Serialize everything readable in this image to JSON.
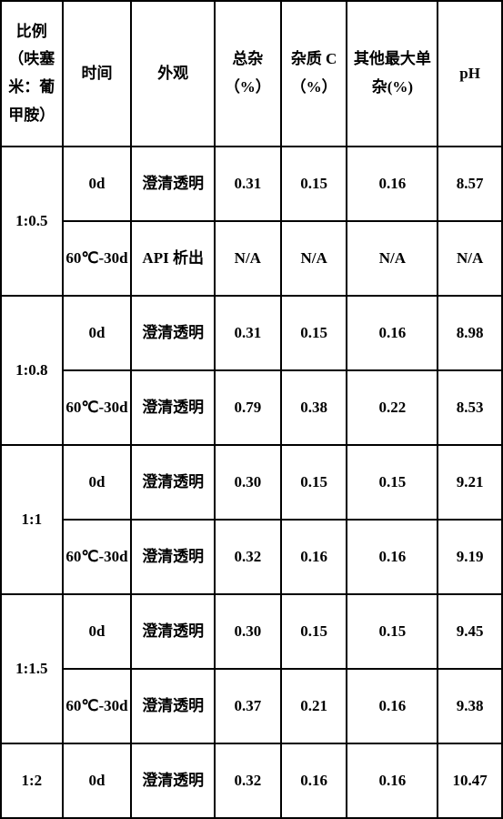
{
  "headers": {
    "ratio": "比例（呋塞米：葡甲胺）",
    "time": "时间",
    "appearance": "外观",
    "total_impurity": "总杂（%）",
    "impurity_c": "杂质 C（%）",
    "other_max": "其他最大单杂(%)",
    "ph": "pH"
  },
  "groups": [
    {
      "ratio": "1:0.5",
      "rows": [
        {
          "time": "0d",
          "appearance": "澄清透明",
          "total": "0.31",
          "impc": "0.15",
          "other": "0.16",
          "ph": "8.57"
        },
        {
          "time": "60℃-30d",
          "appearance": "API 析出",
          "total": "N/A",
          "impc": "N/A",
          "other": "N/A",
          "ph": "N/A"
        }
      ]
    },
    {
      "ratio": "1:0.8",
      "rows": [
        {
          "time": "0d",
          "appearance": "澄清透明",
          "total": "0.31",
          "impc": "0.15",
          "other": "0.16",
          "ph": "8.98"
        },
        {
          "time": "60℃-30d",
          "appearance": "澄清透明",
          "total": "0.79",
          "impc": "0.38",
          "other": "0.22",
          "ph": "8.53"
        }
      ]
    },
    {
      "ratio": "1:1",
      "rows": [
        {
          "time": "0d",
          "appearance": "澄清透明",
          "total": "0.30",
          "impc": "0.15",
          "other": "0.15",
          "ph": "9.21"
        },
        {
          "time": "60℃-30d",
          "appearance": "澄清透明",
          "total": "0.32",
          "impc": "0.16",
          "other": "0.16",
          "ph": "9.19"
        }
      ]
    },
    {
      "ratio": "1:1.5",
      "rows": [
        {
          "time": "0d",
          "appearance": "澄清透明",
          "total": "0.30",
          "impc": "0.15",
          "other": "0.15",
          "ph": "9.45"
        },
        {
          "time": "60℃-30d",
          "appearance": "澄清透明",
          "total": "0.37",
          "impc": "0.21",
          "other": "0.16",
          "ph": "9.38"
        }
      ]
    },
    {
      "ratio": "1:2",
      "rows": [
        {
          "time": "0d",
          "appearance": "澄清透明",
          "total": "0.32",
          "impc": "0.16",
          "other": "0.16",
          "ph": "10.47"
        }
      ]
    }
  ]
}
